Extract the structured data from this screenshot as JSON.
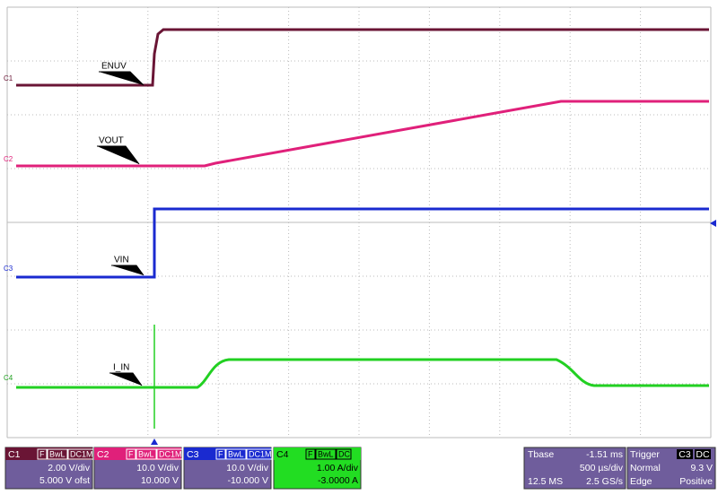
{
  "traces": [
    {
      "channel": "C1",
      "label": "ENUV"
    },
    {
      "channel": "C2",
      "label": "VOUT"
    },
    {
      "channel": "C3",
      "label": "VIN"
    },
    {
      "channel": "C4",
      "label": "I_IN"
    }
  ],
  "channels": [
    {
      "name": "C1",
      "flags": [
        "F",
        "BwL",
        "DC1M"
      ],
      "scale": "2.00 V/div",
      "offset": "5.000 V ofst"
    },
    {
      "name": "C2",
      "flags": [
        "F",
        "BwL",
        "DC1M"
      ],
      "scale": "10.0 V/div",
      "offset": "10.000 V"
    },
    {
      "name": "C3",
      "flags": [
        "F",
        "BwL",
        "DC1M"
      ],
      "scale": "10.0 V/div",
      "offset": "-10.000 V"
    },
    {
      "name": "C4",
      "flags": [
        "F",
        "BwL",
        "DC"
      ],
      "scale": "1.00 A/div",
      "offset": "-3.0000 A"
    }
  ],
  "timebase": {
    "title": "Tbase",
    "delay": "-1.51 ms",
    "scale": "500 µs/div",
    "samples": "12.5 MS",
    "rate": "2.5 GS/s"
  },
  "trigger": {
    "title": "Trigger",
    "source": "C3",
    "coupling": "DC",
    "mode": "Normal",
    "level": "9.3 V",
    "type": "Edge",
    "slope": "Positive"
  }
}
